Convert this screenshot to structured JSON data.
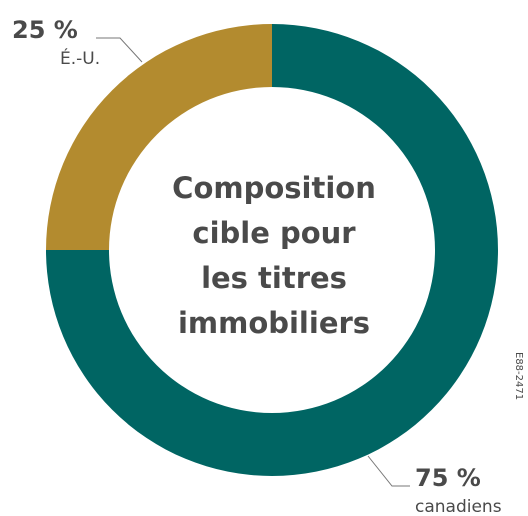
{
  "chart_data": {
    "type": "donut",
    "title_lines": [
      "Composition",
      "cible pour",
      "les titres",
      "immobiliers"
    ],
    "categories": [
      "canadiens",
      "É.-U."
    ],
    "values": [
      75,
      25
    ],
    "value_labels": [
      "75 %",
      "25 %"
    ],
    "colors": [
      "#006563",
      "#b38b2f"
    ],
    "annotation": "E88-2471"
  }
}
